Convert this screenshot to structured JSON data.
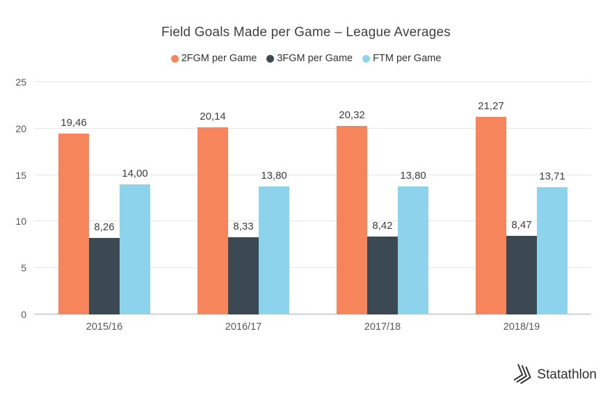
{
  "title": "Field Goals Made per Game – League Averages",
  "chart_data": {
    "type": "bar",
    "title": "Field Goals Made per Game – League Averages",
    "categories": [
      "2015/16",
      "2016/17",
      "2017/18",
      "2018/19"
    ],
    "series": [
      {
        "name": "2FGM per Game",
        "color": "#f7855c",
        "values": [
          19.46,
          20.14,
          20.32,
          21.27
        ],
        "labels": [
          "19,46",
          "20,14",
          "20,32",
          "21,27"
        ]
      },
      {
        "name": "3FGM per Game",
        "color": "#3b4953",
        "values": [
          8.26,
          8.33,
          8.42,
          8.47
        ],
        "labels": [
          "8,26",
          "8,33",
          "8,42",
          "8,47"
        ]
      },
      {
        "name": "FTM per Game",
        "color": "#8dd3ec",
        "values": [
          14.0,
          13.8,
          13.8,
          13.71
        ],
        "labels": [
          "14,00",
          "13,80",
          "13,80",
          "13,71"
        ]
      }
    ],
    "ylim": [
      0,
      25
    ],
    "yticks": [
      0,
      5,
      10,
      15,
      20,
      25
    ],
    "grid": true,
    "legend_position": "top",
    "xlabel": "",
    "ylabel": ""
  },
  "branding": {
    "name": "Statathlon",
    "icon": "triple-chevron-icon",
    "icon_color": "#2f2f2f"
  }
}
